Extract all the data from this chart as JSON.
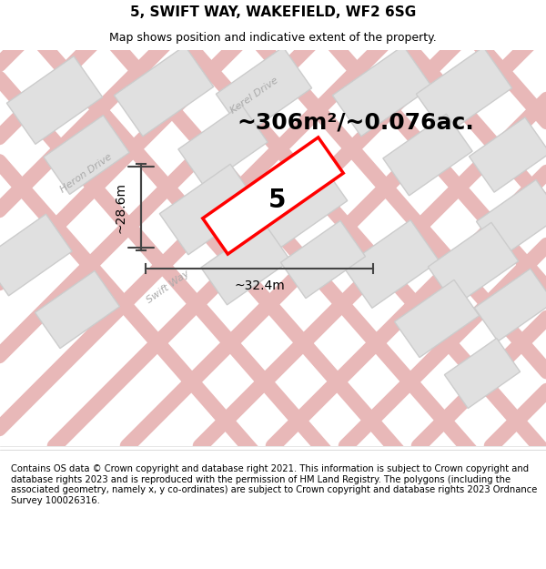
{
  "title": "5, SWIFT WAY, WAKEFIELD, WF2 6SG",
  "subtitle": "Map shows position and indicative extent of the property.",
  "area_text": "~306m²/~0.076ac.",
  "label": "5",
  "dim_height": "~28.6m",
  "dim_width": "~32.4m",
  "footer": "Contains OS data © Crown copyright and database right 2021. This information is subject to Crown copyright and database rights 2023 and is reproduced with the permission of HM Land Registry. The polygons (including the associated geometry, namely x, y co-ordinates) are subject to Crown copyright and database rights 2023 Ordnance Survey 100026316.",
  "bg_color": "#f0f0f0",
  "map_bg": "#f5f5f5",
  "road_color": "#e8b8b8",
  "building_color": "#e0e0e0",
  "building_edge": "#cccccc",
  "plot_color": "#ff0000",
  "road_center_color": "#f5c0c0",
  "street_label_color": "#999999",
  "title_fontsize": 11,
  "subtitle_fontsize": 9,
  "area_fontsize": 18,
  "label_fontsize": 20,
  "footer_fontsize": 7.2,
  "dim_fontsize": 10
}
